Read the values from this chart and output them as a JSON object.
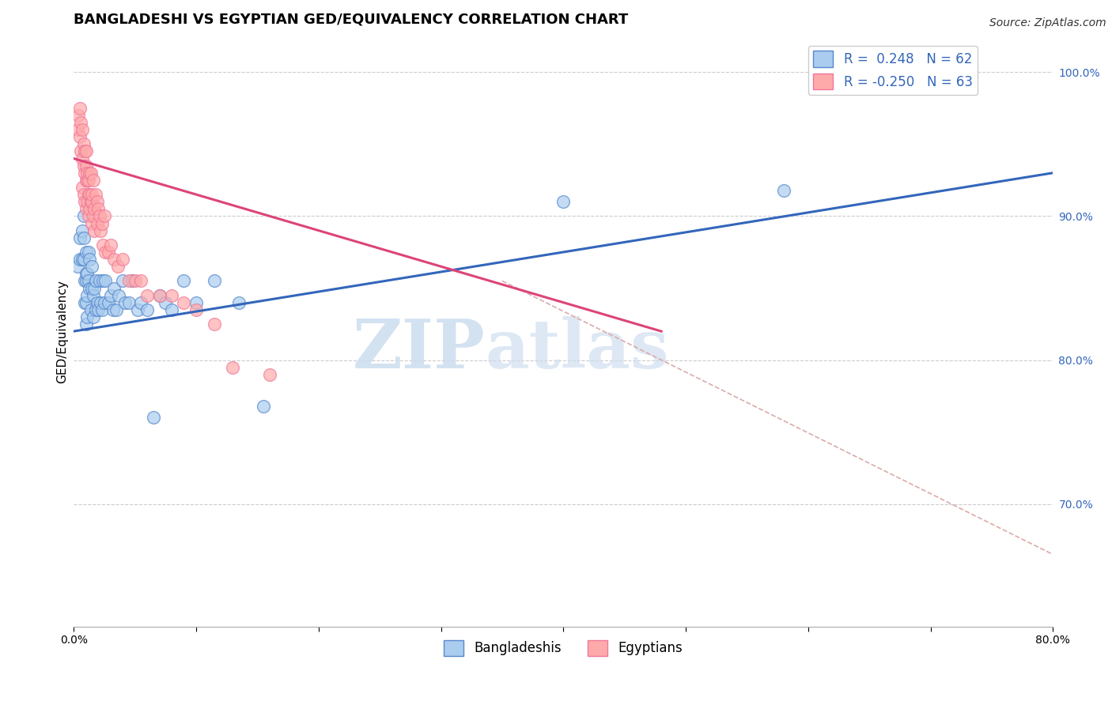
{
  "title": "BANGLADESHI VS EGYPTIAN GED/EQUIVALENCY CORRELATION CHART",
  "source": "Source: ZipAtlas.com",
  "ylabel": "GED/Equivalency",
  "xlim": [
    0.0,
    0.8
  ],
  "ylim": [
    0.615,
    1.025
  ],
  "xticks": [
    0.0,
    0.1,
    0.2,
    0.3,
    0.4,
    0.5,
    0.6,
    0.7,
    0.8
  ],
  "xtick_labels": [
    "0.0%",
    "",
    "",
    "",
    "",
    "",
    "",
    "",
    "80.0%"
  ],
  "yticks_right": [
    0.7,
    0.8,
    0.9,
    1.0
  ],
  "r_blue": 0.248,
  "n_blue": 62,
  "r_pink": -0.25,
  "n_pink": 63,
  "blue_fill": "#AACCEE",
  "pink_fill": "#FFAAAA",
  "blue_edge": "#5588CC",
  "pink_edge": "#EE7799",
  "blue_line_color": "#3366BB",
  "pink_line_color": "#DD4477",
  "dash_line_color": "#DDAAAA",
  "legend_label_blue": "Bangladeshis",
  "legend_label_pink": "Egyptians",
  "blue_scatter_x": [
    0.003,
    0.005,
    0.005,
    0.007,
    0.007,
    0.008,
    0.008,
    0.008,
    0.009,
    0.009,
    0.01,
    0.01,
    0.01,
    0.01,
    0.01,
    0.011,
    0.011,
    0.011,
    0.012,
    0.012,
    0.013,
    0.013,
    0.014,
    0.015,
    0.015,
    0.016,
    0.016,
    0.017,
    0.018,
    0.018,
    0.019,
    0.02,
    0.021,
    0.022,
    0.023,
    0.024,
    0.025,
    0.026,
    0.028,
    0.03,
    0.032,
    0.033,
    0.035,
    0.037,
    0.04,
    0.042,
    0.045,
    0.048,
    0.052,
    0.055,
    0.06,
    0.065,
    0.07,
    0.075,
    0.08,
    0.09,
    0.1,
    0.115,
    0.135,
    0.155,
    0.4,
    0.58
  ],
  "blue_scatter_y": [
    0.865,
    0.885,
    0.87,
    0.89,
    0.87,
    0.9,
    0.885,
    0.87,
    0.855,
    0.84,
    0.875,
    0.855,
    0.84,
    0.825,
    0.86,
    0.845,
    0.83,
    0.86,
    0.875,
    0.855,
    0.87,
    0.85,
    0.835,
    0.85,
    0.865,
    0.845,
    0.83,
    0.85,
    0.835,
    0.855,
    0.84,
    0.835,
    0.855,
    0.84,
    0.835,
    0.855,
    0.84,
    0.855,
    0.84,
    0.845,
    0.835,
    0.85,
    0.835,
    0.845,
    0.855,
    0.84,
    0.84,
    0.855,
    0.835,
    0.84,
    0.835,
    0.76,
    0.845,
    0.84,
    0.835,
    0.855,
    0.84,
    0.855,
    0.84,
    0.768,
    0.91,
    0.918
  ],
  "pink_scatter_x": [
    0.003,
    0.004,
    0.005,
    0.005,
    0.006,
    0.006,
    0.007,
    0.007,
    0.007,
    0.008,
    0.008,
    0.008,
    0.009,
    0.009,
    0.009,
    0.01,
    0.01,
    0.01,
    0.01,
    0.011,
    0.011,
    0.011,
    0.012,
    0.012,
    0.012,
    0.013,
    0.013,
    0.013,
    0.014,
    0.014,
    0.015,
    0.015,
    0.015,
    0.016,
    0.016,
    0.017,
    0.017,
    0.018,
    0.019,
    0.019,
    0.02,
    0.021,
    0.022,
    0.023,
    0.024,
    0.025,
    0.026,
    0.028,
    0.03,
    0.033,
    0.036,
    0.04,
    0.045,
    0.05,
    0.055,
    0.06,
    0.07,
    0.08,
    0.09,
    0.1,
    0.115,
    0.13,
    0.16
  ],
  "pink_scatter_y": [
    0.96,
    0.97,
    0.975,
    0.955,
    0.965,
    0.945,
    0.96,
    0.94,
    0.92,
    0.95,
    0.935,
    0.915,
    0.945,
    0.93,
    0.91,
    0.935,
    0.925,
    0.905,
    0.945,
    0.925,
    0.91,
    0.93,
    0.915,
    0.9,
    0.925,
    0.915,
    0.93,
    0.905,
    0.91,
    0.93,
    0.91,
    0.895,
    0.915,
    0.9,
    0.925,
    0.905,
    0.89,
    0.915,
    0.91,
    0.895,
    0.905,
    0.9,
    0.89,
    0.895,
    0.88,
    0.9,
    0.875,
    0.875,
    0.88,
    0.87,
    0.865,
    0.87,
    0.855,
    0.855,
    0.855,
    0.845,
    0.845,
    0.845,
    0.84,
    0.835,
    0.825,
    0.795,
    0.79
  ],
  "blue_line_x": [
    0.0,
    0.8
  ],
  "blue_line_y": [
    0.82,
    0.93
  ],
  "pink_line_x": [
    0.0,
    0.48
  ],
  "pink_line_y": [
    0.94,
    0.82
  ],
  "dash_line_x": [
    0.35,
    0.8
  ],
  "dash_line_y": [
    0.855,
    0.665
  ],
  "title_fontsize": 13,
  "source_fontsize": 10,
  "axis_label_fontsize": 11,
  "tick_fontsize": 10,
  "legend_fontsize": 12
}
